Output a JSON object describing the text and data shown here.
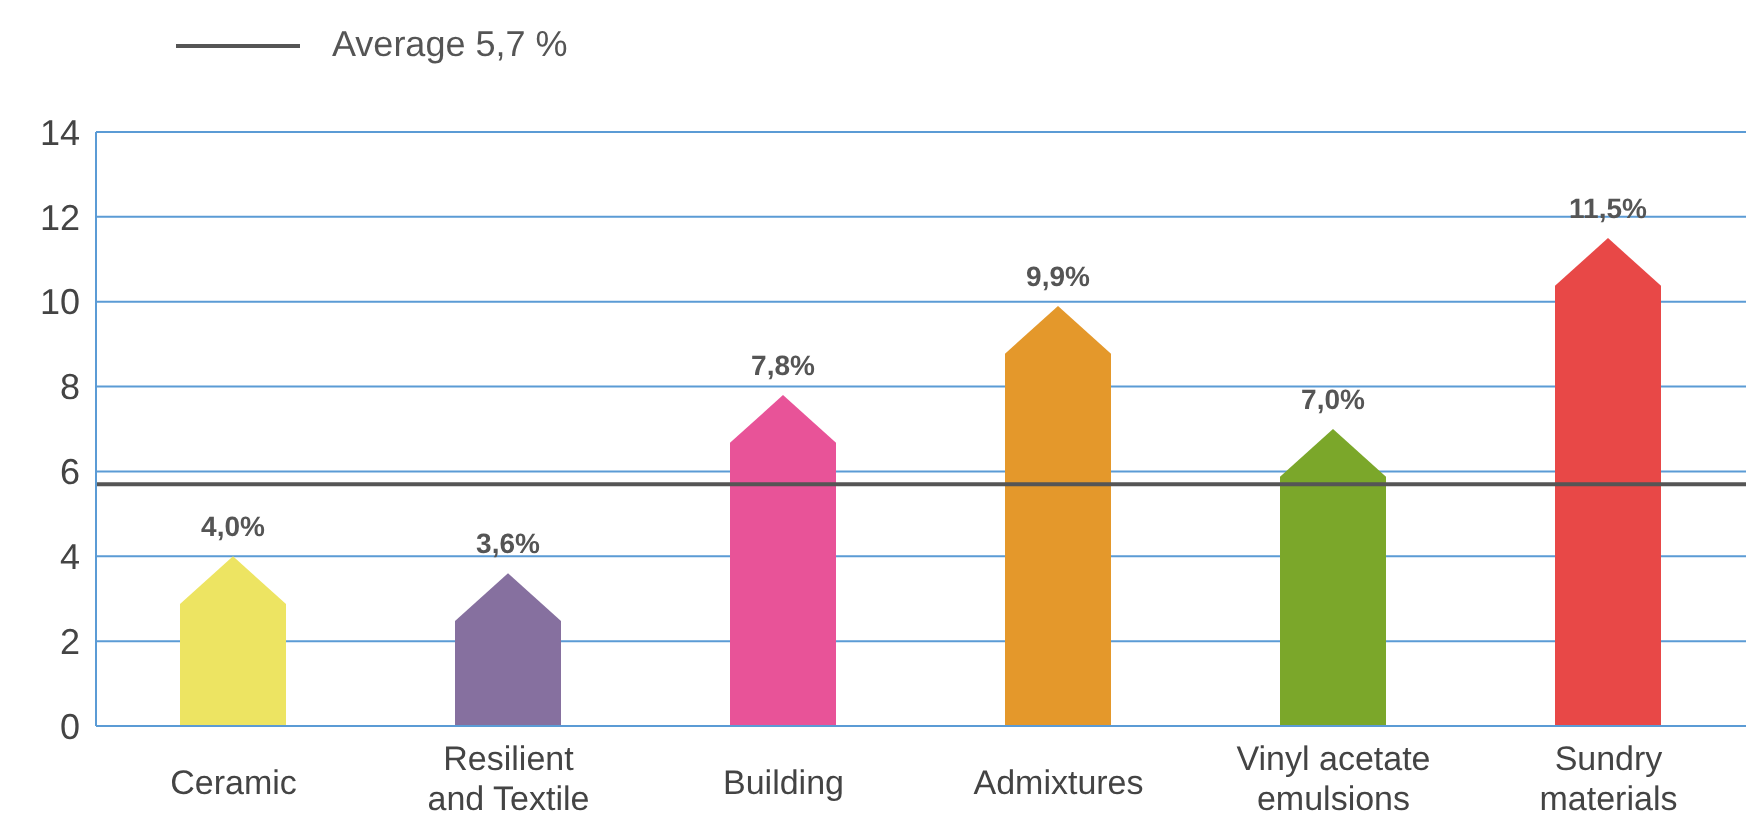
{
  "chart_data": {
    "type": "bar",
    "categories": [
      "Ceramic",
      "Resilient and Textile",
      "Building",
      "Admixtures",
      "Vinyl acetate emulsions",
      "Sundry materials"
    ],
    "values": [
      4.0,
      3.6,
      7.8,
      9.9,
      7.0,
      11.5
    ],
    "colors": [
      "#ede462",
      "#86709f",
      "#e85398",
      "#e4982b",
      "#7ba72a",
      "#e84847"
    ],
    "value_labels": [
      "4,0%",
      "3,6%",
      "7,8%",
      "9,9%",
      "7,0%",
      "11,5%"
    ],
    "ylim": [
      0,
      14
    ],
    "yticks": [
      0,
      2,
      4,
      6,
      8,
      10,
      12,
      14
    ],
    "grid": "y",
    "legend": "top left",
    "ref_lines": [
      {
        "axis": "y",
        "value": 5.7,
        "label": "Average 5,7 %",
        "color": "#555555"
      }
    ]
  }
}
